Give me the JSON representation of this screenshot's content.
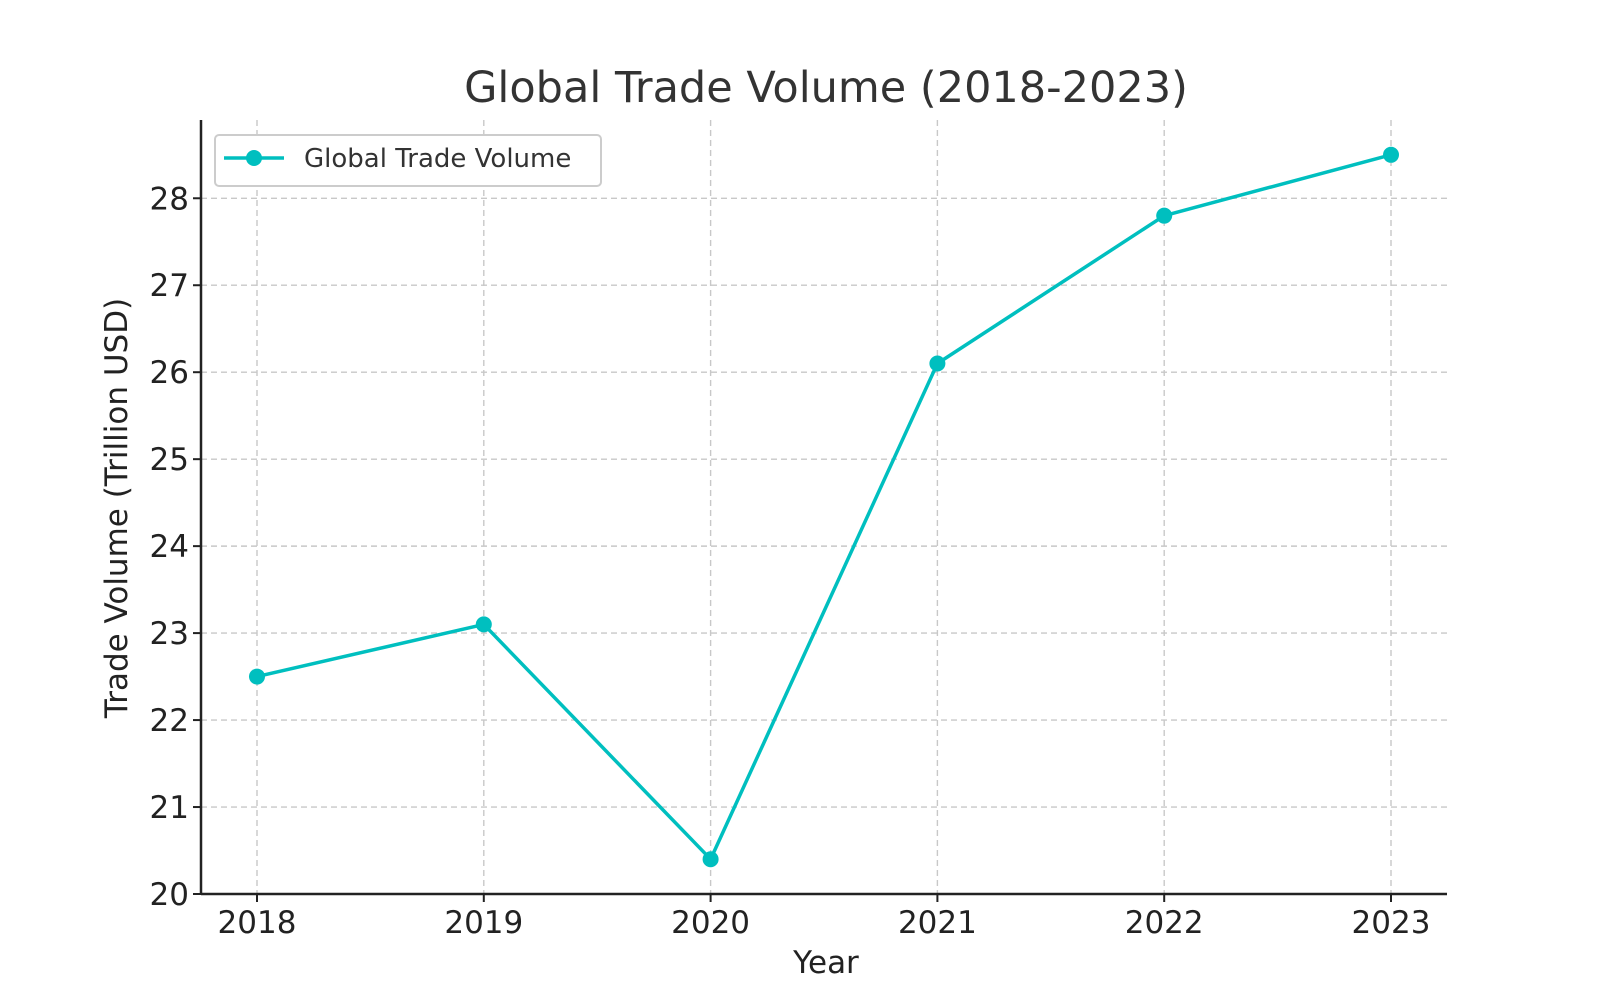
{
  "chart_data": {
    "type": "line",
    "title": "Global Trade Volume (2018-2023)",
    "xlabel": "Year",
    "ylabel": "Trade Volume (Trillion USD)",
    "categories": [
      "2018",
      "2019",
      "2020",
      "2021",
      "2022",
      "2023"
    ],
    "series": [
      {
        "name": "Global Trade Volume",
        "values": [
          22.5,
          23.1,
          20.4,
          26.1,
          27.8,
          28.5
        ],
        "color": "#00bfbf",
        "marker": "circle"
      }
    ],
    "ylim": [
      20,
      28.9
    ],
    "yticks": [
      20,
      21,
      22,
      23,
      24,
      25,
      26,
      27,
      28
    ],
    "grid": true,
    "legend_position": "top-left"
  }
}
